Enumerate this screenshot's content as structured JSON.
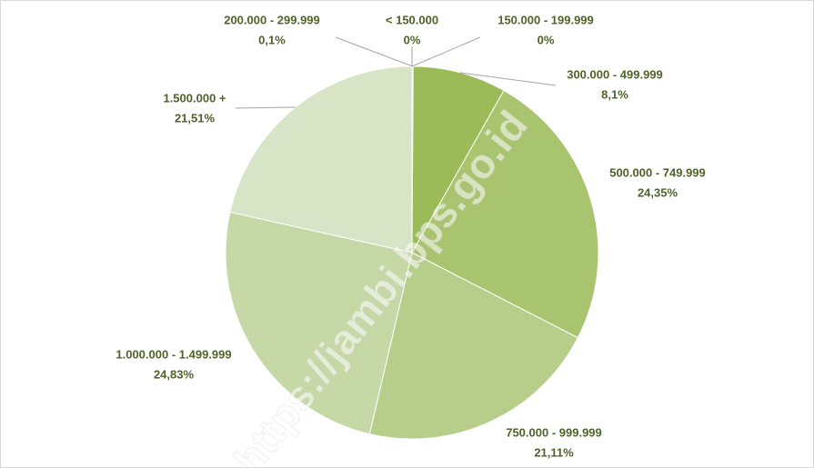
{
  "chart_data": {
    "type": "pie",
    "categories": [
      "< 150.000",
      "150.000 - 199.999",
      "200.000 - 299.999",
      "300.000 - 499.999",
      "500.000 - 749.999",
      "750.000 - 999.999",
      "1.000.000 - 1.499.999",
      "1.500.000 +"
    ],
    "values": [
      0,
      0,
      0.1,
      8.1,
      24.35,
      21.11,
      24.83,
      21.51
    ],
    "value_labels": [
      "0%",
      "0%",
      "0,1%",
      "8,1%",
      "24,35%",
      "21,11%",
      "24,83%",
      "21,51%"
    ],
    "colors": [
      "#76923c",
      "#86a345",
      "#8fb04f",
      "#9bbb59",
      "#a9c46f",
      "#b7cd8a",
      "#c6d8a6",
      "#d8e4c6"
    ],
    "watermark": "https://jambi.bps.go.id"
  }
}
